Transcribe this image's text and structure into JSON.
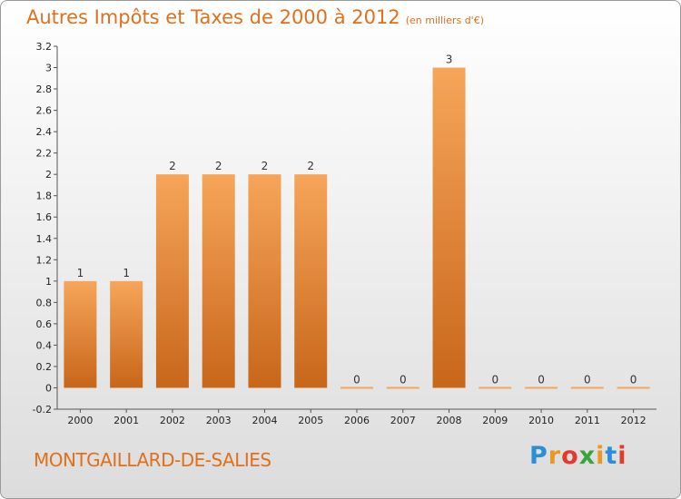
{
  "header": {
    "title": "Autres Impôts et Taxes de 2000 à 2012",
    "subtitle": "(en milliers d'€)"
  },
  "footer": {
    "commune": "MONTGAILLARD-DE-SALIES",
    "logo": {
      "letters": [
        "P",
        "r",
        "o",
        "x",
        "i",
        "t",
        "i"
      ],
      "colors": [
        "#2a8fd6",
        "#e89a1e",
        "#e23b2e",
        "#3aa43a",
        "#e89a1e",
        "#2a8fd6",
        "#e23b2e"
      ]
    }
  },
  "chart_data": {
    "type": "bar",
    "categories": [
      "2000",
      "2001",
      "2002",
      "2003",
      "2004",
      "2005",
      "2006",
      "2007",
      "2008",
      "2009",
      "2010",
      "2011",
      "2012"
    ],
    "values": [
      1,
      1,
      2,
      2,
      2,
      2,
      0,
      0,
      3,
      0,
      0,
      0,
      0
    ],
    "data_labels": [
      "1",
      "1",
      "2",
      "2",
      "2",
      "2",
      "0",
      "0",
      "3",
      "0",
      "0",
      "0",
      "0"
    ],
    "yticks": [
      "-0.2",
      "0",
      "0.2",
      "0.4",
      "0.6",
      "0.8",
      "1",
      "1.2",
      "1.4",
      "1.6",
      "1.8",
      "2",
      "2.2",
      "2.4",
      "2.6",
      "2.8",
      "3",
      "3.2"
    ],
    "ylim": [
      -0.2,
      3.2
    ],
    "grid": false,
    "colors": {
      "bar_light": "#f6a55a",
      "bar_dark": "#c8661a",
      "accent": "#e0701c"
    }
  }
}
